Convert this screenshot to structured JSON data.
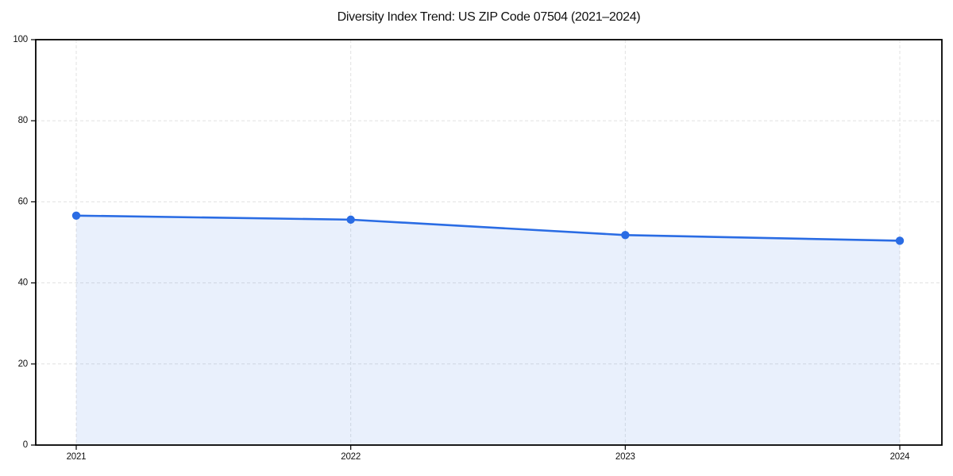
{
  "window": {
    "background": "#ffffff"
  },
  "chart_data": {
    "type": "area",
    "title": "Diversity Index Trend: US ZIP Code 07504 (2021–2024)",
    "categories": [
      "2021",
      "2022",
      "2023",
      "2024"
    ],
    "values": [
      56.6,
      55.6,
      51.8,
      50.4
    ],
    "xlabel": "",
    "ylabel": "",
    "ylim": [
      0,
      100
    ],
    "yticks": [
      0,
      20,
      40,
      60,
      80,
      100
    ],
    "grid": true,
    "grid_style": "dashed",
    "legend_position": "none",
    "colors": {
      "line": "#2a6ce4",
      "marker": "#2a6ce4",
      "fill": "#2a6ce4",
      "fill_opacity": 0.1,
      "grid": "#e1e1e1",
      "axis": "#000000",
      "text": "#111111",
      "background": "#ffffff"
    }
  }
}
